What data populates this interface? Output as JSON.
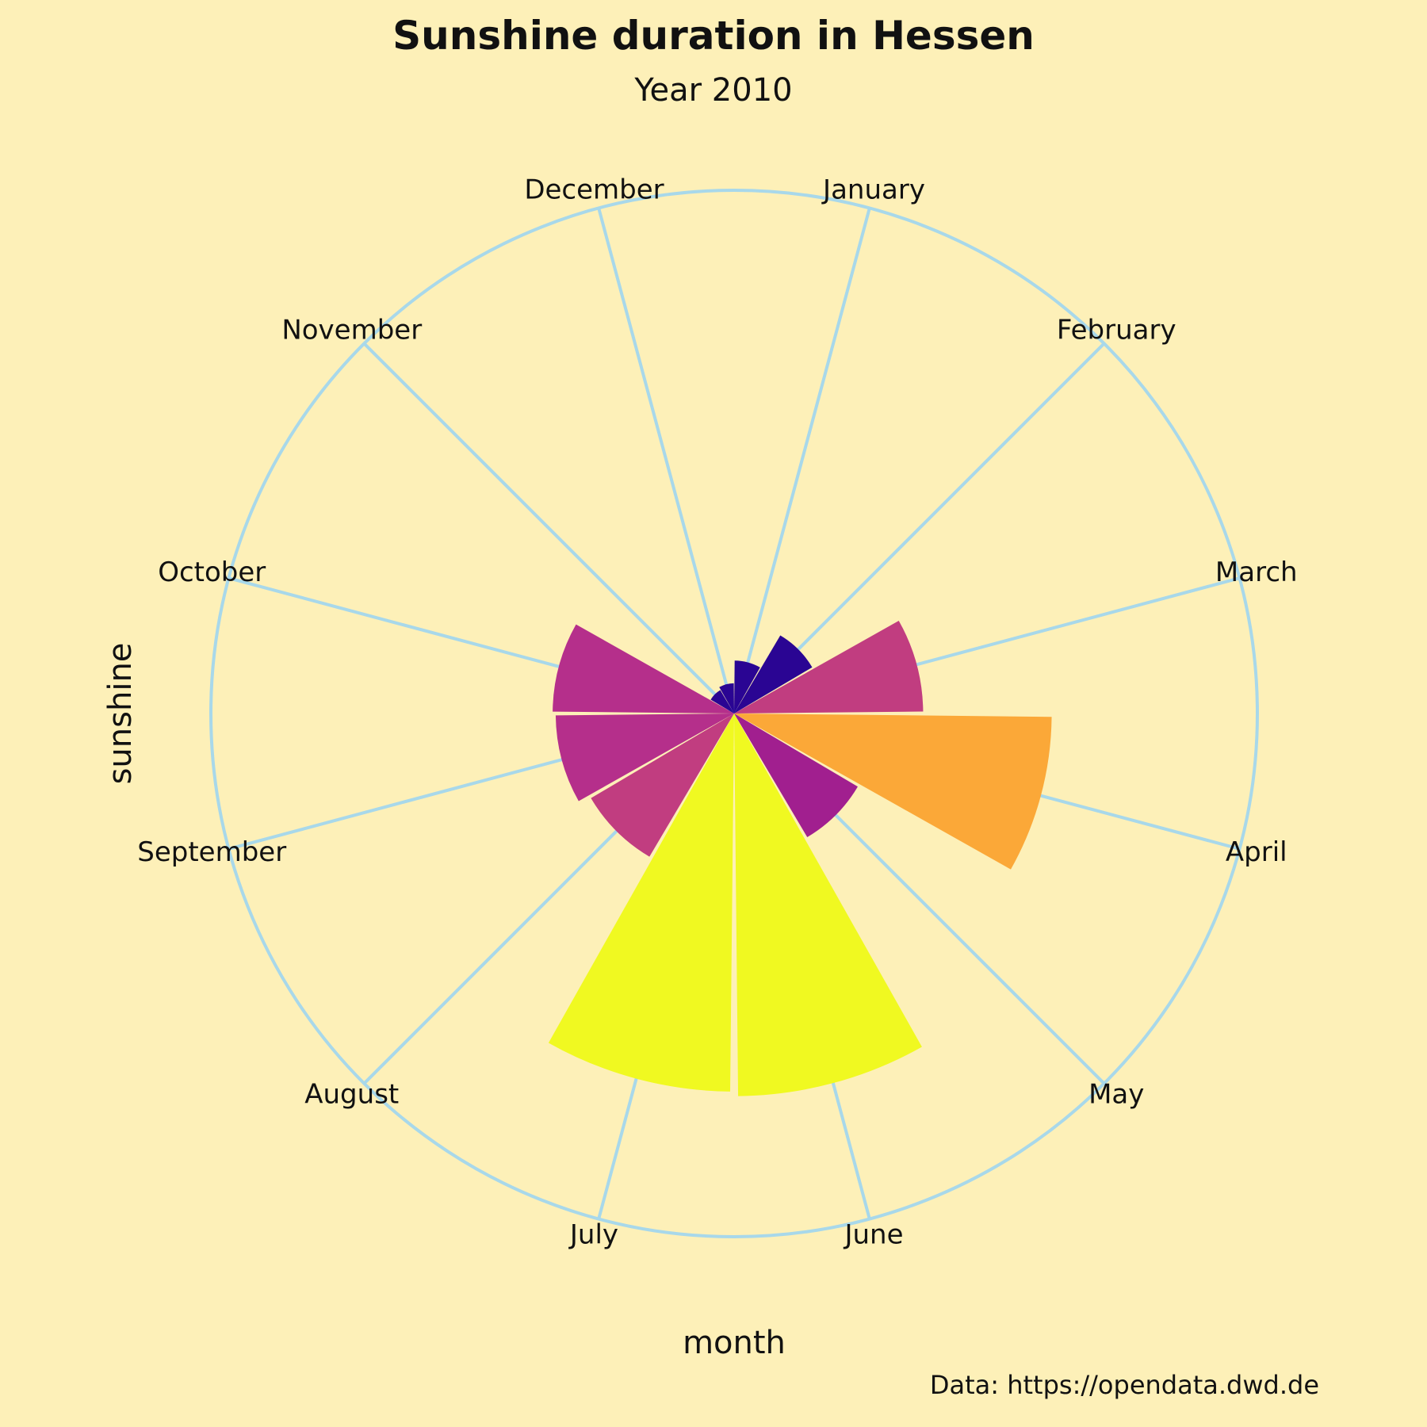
{
  "chart_data": {
    "type": "bar",
    "polar": true,
    "title": "Sunshine duration in Hessen",
    "subtitle": "Year 2010",
    "xlabel": "month",
    "ylabel": "sunshine",
    "caption": "Data: https://opendata.dwd.de",
    "categories": [
      "January",
      "February",
      "March",
      "April",
      "May",
      "June",
      "July",
      "August",
      "September",
      "October",
      "November",
      "December"
    ],
    "values": [
      35,
      60,
      125,
      210,
      95,
      253,
      250,
      110,
      118,
      120,
      18,
      20
    ],
    "rmax": 346,
    "grid": true,
    "start_angle": "top",
    "direction": "clockwise",
    "colormap": "plasma",
    "bar_colors": [
      "#2a0593",
      "#2a0593",
      "#c13d80",
      "#fba838",
      "#a11f8f",
      "#f0f921",
      "#f0f921",
      "#c13d80",
      "#b52f8b",
      "#b52f8b",
      "#2a0593",
      "#2a0593"
    ],
    "background_color": "#fdf0b8",
    "grid_color": "#a8d8ea"
  }
}
